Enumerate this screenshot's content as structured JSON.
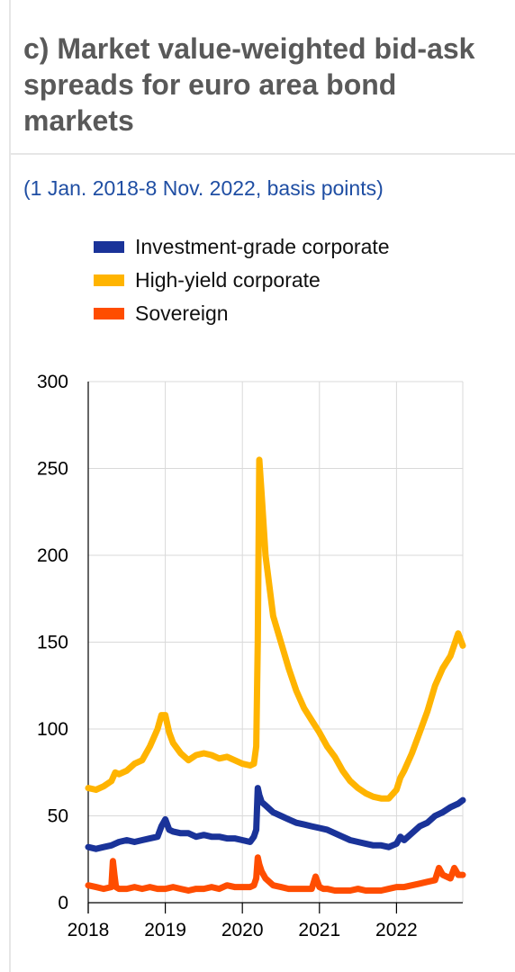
{
  "panel": {
    "title": "c) Market value-weighted bid-ask spreads for euro area bond markets",
    "subtitle": "(1 Jan. 2018-8 Nov. 2022, basis points)"
  },
  "chart_data": {
    "type": "line",
    "title": "c) Market value-weighted bid-ask spreads for euro area bond markets",
    "subtitle": "(1 Jan. 2018-8 Nov. 2022, basis points)",
    "xlabel": "",
    "ylabel": "",
    "ylim": [
      0,
      300
    ],
    "xlim": [
      2018.0,
      2022.86
    ],
    "x_ticks": [
      "2018",
      "2019",
      "2020",
      "2021",
      "2022"
    ],
    "y_ticks": [
      "0",
      "50",
      "100",
      "150",
      "200",
      "250",
      "300"
    ],
    "grid": true,
    "legend_position": "top",
    "series": [
      {
        "name": "Investment-grade corporate",
        "color": "#1a3399",
        "x": [
          2018.0,
          2018.1,
          2018.2,
          2018.3,
          2018.4,
          2018.5,
          2018.6,
          2018.7,
          2018.8,
          2018.9,
          2018.95,
          2019.0,
          2019.05,
          2019.1,
          2019.2,
          2019.3,
          2019.4,
          2019.5,
          2019.6,
          2019.7,
          2019.8,
          2019.9,
          2020.0,
          2020.1,
          2020.15,
          2020.18,
          2020.2,
          2020.22,
          2020.25,
          2020.3,
          2020.4,
          2020.5,
          2020.6,
          2020.7,
          2020.8,
          2020.9,
          2021.0,
          2021.1,
          2021.2,
          2021.3,
          2021.4,
          2021.5,
          2021.6,
          2021.7,
          2021.8,
          2021.9,
          2022.0,
          2022.05,
          2022.1,
          2022.2,
          2022.3,
          2022.4,
          2022.5,
          2022.6,
          2022.7,
          2022.8,
          2022.86
        ],
        "values": [
          32,
          31,
          32,
          33,
          35,
          36,
          35,
          36,
          37,
          38,
          44,
          48,
          42,
          41,
          40,
          40,
          38,
          39,
          38,
          38,
          37,
          37,
          36,
          35,
          38,
          42,
          66,
          62,
          58,
          56,
          52,
          50,
          48,
          46,
          45,
          44,
          43,
          42,
          40,
          38,
          36,
          35,
          34,
          33,
          33,
          32,
          34,
          38,
          36,
          40,
          44,
          46,
          50,
          52,
          55,
          57,
          59
        ]
      },
      {
        "name": "High-yield corporate",
        "color": "#ffb400",
        "x": [
          2018.0,
          2018.1,
          2018.2,
          2018.3,
          2018.35,
          2018.4,
          2018.5,
          2018.6,
          2018.7,
          2018.8,
          2018.9,
          2018.95,
          2019.0,
          2019.05,
          2019.1,
          2019.2,
          2019.3,
          2019.4,
          2019.5,
          2019.6,
          2019.7,
          2019.8,
          2019.9,
          2020.0,
          2020.1,
          2020.15,
          2020.18,
          2020.2,
          2020.22,
          2020.25,
          2020.3,
          2020.4,
          2020.5,
          2020.6,
          2020.7,
          2020.8,
          2020.9,
          2021.0,
          2021.1,
          2021.2,
          2021.3,
          2021.4,
          2021.5,
          2021.6,
          2021.7,
          2021.8,
          2021.9,
          2022.0,
          2022.05,
          2022.1,
          2022.2,
          2022.3,
          2022.4,
          2022.5,
          2022.6,
          2022.7,
          2022.8,
          2022.86
        ],
        "values": [
          66,
          65,
          67,
          70,
          75,
          74,
          76,
          80,
          82,
          90,
          100,
          108,
          108,
          98,
          92,
          86,
          82,
          85,
          86,
          85,
          83,
          84,
          82,
          80,
          79,
          80,
          90,
          150,
          255,
          235,
          200,
          165,
          150,
          135,
          122,
          112,
          105,
          98,
          90,
          84,
          76,
          70,
          66,
          63,
          61,
          60,
          60,
          65,
          72,
          76,
          86,
          98,
          110,
          125,
          135,
          142,
          155,
          148
        ]
      },
      {
        "name": "Sovereign",
        "color": "#ff4d00",
        "x": [
          2018.0,
          2018.1,
          2018.2,
          2018.3,
          2018.32,
          2018.34,
          2018.36,
          2018.4,
          2018.5,
          2018.6,
          2018.7,
          2018.8,
          2018.9,
          2019.0,
          2019.1,
          2019.2,
          2019.3,
          2019.4,
          2019.5,
          2019.6,
          2019.7,
          2019.8,
          2019.9,
          2020.0,
          2020.1,
          2020.15,
          2020.18,
          2020.2,
          2020.22,
          2020.25,
          2020.3,
          2020.4,
          2020.5,
          2020.6,
          2020.7,
          2020.8,
          2020.9,
          2020.95,
          2021.0,
          2021.05,
          2021.1,
          2021.2,
          2021.3,
          2021.4,
          2021.5,
          2021.6,
          2021.7,
          2021.8,
          2021.9,
          2022.0,
          2022.1,
          2022.2,
          2022.3,
          2022.4,
          2022.5,
          2022.55,
          2022.6,
          2022.7,
          2022.75,
          2022.8,
          2022.86
        ],
        "values": [
          10,
          9,
          8,
          9,
          24,
          16,
          9,
          8,
          8,
          9,
          8,
          9,
          8,
          8,
          9,
          8,
          7,
          8,
          8,
          9,
          8,
          10,
          9,
          9,
          9,
          10,
          14,
          26,
          22,
          18,
          14,
          10,
          9,
          8,
          8,
          8,
          8,
          15,
          9,
          8,
          8,
          7,
          7,
          7,
          8,
          7,
          7,
          7,
          8,
          9,
          9,
          10,
          11,
          12,
          13,
          20,
          16,
          14,
          20,
          16,
          16
        ]
      }
    ]
  }
}
